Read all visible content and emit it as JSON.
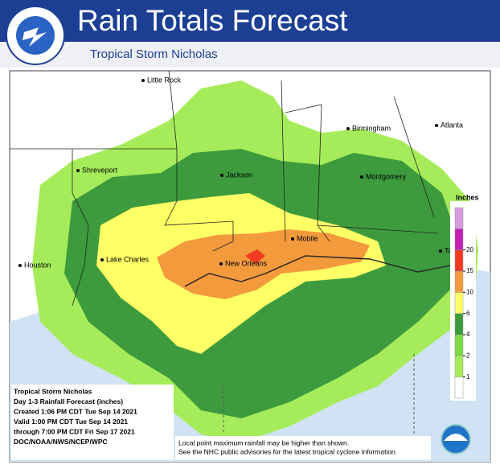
{
  "header": {
    "title": "Rain Totals Forecast",
    "subtitle": "Tropical Storm Nicholas"
  },
  "cities": [
    "Little Rock",
    "Birmingham",
    "Atlanta",
    "Shreveport",
    "Jackson",
    "Montgomery",
    "Houston",
    "Lake Charles",
    "New Orleans",
    "Mobile",
    "Ta"
  ],
  "legend": {
    "title": "Inches",
    "ticks": [
      1,
      2,
      4,
      6,
      10,
      15,
      20
    ],
    "colors": [
      "#ffffff",
      "#a6ec5a",
      "#7fd944",
      "#3d9b3d",
      "#ffff66",
      "#f29a3c",
      "#f23a22",
      "#c21fb4",
      "#d79be0"
    ]
  },
  "info": [
    "Tropical Storm Nicholas",
    "Day 1-3 Rainfall Forecast (inches)",
    "Created 1:06 PM CDT Tue Sep 14 2021",
    "Valid 1:00 PM CDT Tue Sep 14 2021",
    "through 7:00 PM CDT Fri Sep 17 2021",
    "DOC/NOAA/NWS/NCEP/WPC"
  ],
  "note": [
    "Local point maximum rainfall may be higher than shown.",
    "See the NHC public advisories for the latest tropical cyclone information."
  ]
}
